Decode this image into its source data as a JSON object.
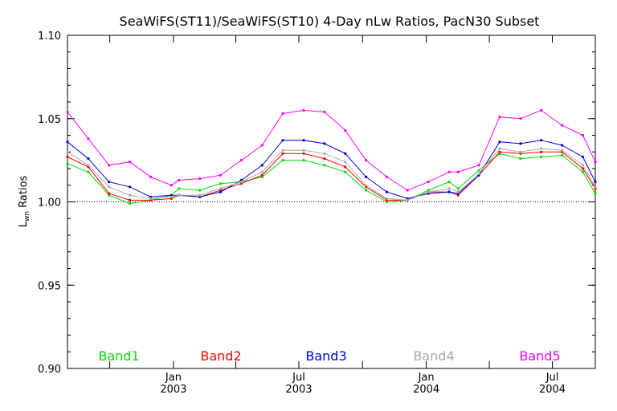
{
  "chart_data": {
    "type": "line",
    "title": "SeaWiFS(ST11)/SeaWiFS(ST10) 4-Day nLw Ratios, PacN30 Subset",
    "ylabel_main": "L",
    "ylabel_sub": "wn",
    "ylabel_rest": " Ratios",
    "ylim": [
      0.9,
      1.1
    ],
    "yticks": [
      {
        "value": 0.9,
        "label": "0.90"
      },
      {
        "value": 0.95,
        "label": "0.95"
      },
      {
        "value": 1.0,
        "label": "1.00"
      },
      {
        "value": 1.05,
        "label": "1.05"
      },
      {
        "value": 1.1,
        "label": "1.10"
      }
    ],
    "xlim": [
      "2002-08-01",
      "2004-09-01"
    ],
    "xticks_major": [
      {
        "date": "2003-01-01",
        "label1": "Jan",
        "label2": "2003"
      },
      {
        "date": "2003-07-01",
        "label1": "Jul",
        "label2": "2003"
      },
      {
        "date": "2004-01-01",
        "label1": "Jan",
        "label2": "2004"
      },
      {
        "date": "2004-07-01",
        "label1": "Jul",
        "label2": "2004"
      }
    ],
    "xticks_minor": [
      "2002-10-01",
      "2003-04-01",
      "2003-10-01",
      "2004-04-01"
    ],
    "reference_line": 1.0,
    "x": [
      "2002-08-01",
      "2002-08-31",
      "2002-09-30",
      "2002-10-30",
      "2002-11-29",
      "2002-12-29",
      "2003-01-09",
      "2003-02-08",
      "2003-03-10",
      "2003-04-09",
      "2003-05-09",
      "2003-06-08",
      "2003-07-08",
      "2003-08-07",
      "2003-09-06",
      "2003-10-06",
      "2003-11-05",
      "2003-12-05",
      "2004-01-04",
      "2004-02-03",
      "2004-02-16",
      "2004-03-17",
      "2004-04-16",
      "2004-05-16",
      "2004-06-15",
      "2004-07-15",
      "2004-08-14",
      "2004-09-01"
    ],
    "series": [
      {
        "name": "Band1",
        "color": "#00dd00",
        "values": [
          1.023,
          1.018,
          1.004,
          0.999,
          1.001,
          1.004,
          1.008,
          1.007,
          1.011,
          1.012,
          1.015,
          1.025,
          1.025,
          1.022,
          1.018,
          1.007,
          1.0,
          1.001,
          1.007,
          1.012,
          1.008,
          1.019,
          1.029,
          1.026,
          1.027,
          1.028,
          1.018,
          1.005
        ]
      },
      {
        "name": "Band2",
        "color": "#ff0000",
        "values": [
          1.027,
          1.021,
          1.005,
          1.001,
          1.001,
          1.002,
          1.004,
          1.003,
          1.007,
          1.011,
          1.016,
          1.029,
          1.029,
          1.026,
          1.021,
          1.009,
          1.001,
          1.001,
          1.006,
          1.006,
          1.004,
          1.016,
          1.03,
          1.029,
          1.03,
          1.03,
          1.02,
          1.008
        ]
      },
      {
        "name": "Band3",
        "color": "#0000dd",
        "values": [
          1.036,
          1.026,
          1.012,
          1.009,
          1.003,
          1.004,
          1.004,
          1.003,
          1.006,
          1.013,
          1.022,
          1.037,
          1.037,
          1.035,
          1.029,
          1.015,
          1.006,
          1.002,
          1.005,
          1.006,
          1.005,
          1.016,
          1.036,
          1.035,
          1.037,
          1.034,
          1.027,
          1.012
        ]
      },
      {
        "name": "Band4",
        "color": "#aaaaaa",
        "values": [
          1.03,
          1.022,
          1.009,
          1.004,
          1.002,
          1.003,
          1.004,
          1.004,
          1.008,
          1.012,
          1.018,
          1.031,
          1.031,
          1.029,
          1.024,
          1.01,
          1.002,
          1.001,
          1.006,
          1.008,
          1.006,
          1.017,
          1.032,
          1.03,
          1.032,
          1.031,
          1.022,
          1.009
        ]
      },
      {
        "name": "Band5",
        "color": "#ff00ff",
        "values": [
          1.054,
          1.038,
          1.022,
          1.024,
          1.015,
          1.01,
          1.013,
          1.014,
          1.016,
          1.025,
          1.034,
          1.053,
          1.055,
          1.054,
          1.043,
          1.025,
          1.015,
          1.007,
          1.012,
          1.018,
          1.018,
          1.022,
          1.051,
          1.05,
          1.055,
          1.046,
          1.04,
          1.024
        ]
      }
    ]
  }
}
